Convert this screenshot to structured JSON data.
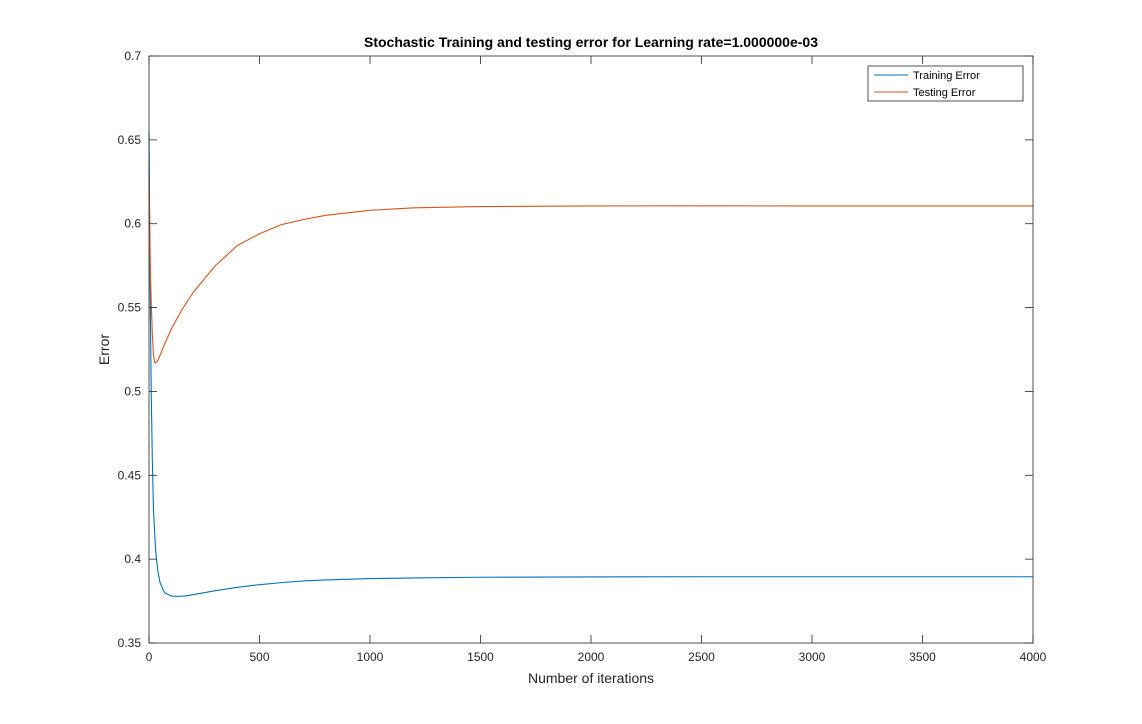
{
  "chart_data": {
    "type": "line",
    "title": "Stochastic Training and testing error for Learning rate=1.000000e-03",
    "xlabel": "Number of iterations",
    "ylabel": "Error",
    "xlim": [
      0,
      4000
    ],
    "ylim": [
      0.35,
      0.7
    ],
    "xticks": [
      0,
      500,
      1000,
      1500,
      2000,
      2500,
      3000,
      3500,
      4000
    ],
    "xtick_labels": [
      "0",
      "500",
      "1000",
      "1500",
      "2000",
      "2500",
      "3000",
      "3500",
      "4000"
    ],
    "yticks": [
      0.35,
      0.4,
      0.45,
      0.5,
      0.55,
      0.6,
      0.65,
      0.7
    ],
    "ytick_labels": [
      "0.35",
      "0.4",
      "0.45",
      "0.5",
      "0.55",
      "0.6",
      "0.65",
      "0.7"
    ],
    "grid": false,
    "legend_position": "top-right",
    "series": [
      {
        "name": "Training Error",
        "color": "#0072BD",
        "x": [
          0,
          3,
          6,
          10,
          15,
          20,
          30,
          40,
          50,
          70,
          100,
          130,
          160,
          200,
          250,
          300,
          400,
          500,
          600,
          700,
          800,
          1000,
          1200,
          1500,
          2000,
          2500,
          3000,
          3500,
          4000
        ],
        "y": [
          0.655,
          0.6,
          0.55,
          0.5,
          0.46,
          0.43,
          0.405,
          0.393,
          0.386,
          0.38,
          0.378,
          0.3778,
          0.378,
          0.3788,
          0.38,
          0.3812,
          0.3832,
          0.3848,
          0.386,
          0.387,
          0.3876,
          0.3884,
          0.3888,
          0.3892,
          0.3894,
          0.3895,
          0.3895,
          0.3895,
          0.3895
        ]
      },
      {
        "name": "Testing Error",
        "color": "#D95319",
        "x": [
          0,
          3,
          6,
          10,
          15,
          20,
          25,
          30,
          40,
          50,
          70,
          100,
          150,
          200,
          300,
          400,
          500,
          600,
          700,
          800,
          1000,
          1200,
          1500,
          2000,
          2500,
          3000,
          3500,
          4000
        ],
        "y": [
          0.63,
          0.6,
          0.575,
          0.553,
          0.535,
          0.522,
          0.5175,
          0.517,
          0.5185,
          0.5215,
          0.528,
          0.537,
          0.549,
          0.559,
          0.575,
          0.587,
          0.594,
          0.5995,
          0.6025,
          0.605,
          0.608,
          0.6095,
          0.6102,
          0.6106,
          0.6107,
          0.6106,
          0.6106,
          0.6106
        ]
      }
    ]
  }
}
